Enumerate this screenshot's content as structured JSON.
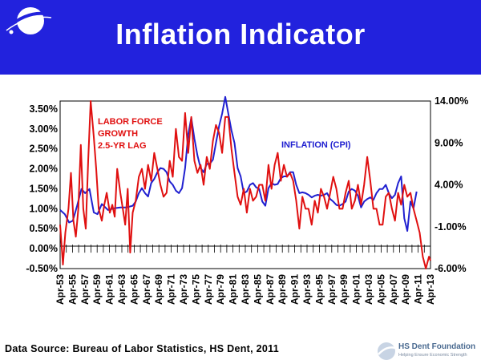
{
  "header": {
    "title": "Inflation Indicator"
  },
  "footer": {
    "source": "Data Source: Bureau of Labor Statistics, HS Dent, 2011"
  },
  "brand": {
    "name": "HS Dent Foundation",
    "tagline": "Helping Ensure Economic Strength"
  },
  "colors": {
    "header_bg": "#2222dd",
    "labor_series": "#e01010",
    "cpi_series": "#2020d0"
  },
  "chart_data": {
    "type": "line",
    "x_range": [
      1953.25,
      2013.25
    ],
    "x_tick_labels": [
      "Apr-53",
      "Apr-55",
      "Apr-57",
      "Apr-59",
      "Apr-61",
      "Apr-63",
      "Apr-65",
      "Apr-67",
      "Apr-69",
      "Apr-71",
      "Apr-73",
      "Apr-75",
      "Apr-77",
      "Apr-79",
      "Apr-81",
      "Apr-83",
      "Apr-85",
      "Apr-87",
      "Apr-89",
      "Apr-91",
      "Apr-93",
      "Apr-95",
      "Apr-97",
      "Apr-99",
      "Apr-01",
      "Apr-03",
      "Apr-05",
      "Apr-07",
      "Apr-09",
      "Apr-11",
      "Apr-13"
    ],
    "y_left": {
      "min": -0.5,
      "max": 3.7,
      "ticks": [
        "3.50%",
        "3.00%",
        "2.50%",
        "2.00%",
        "1.50%",
        "1.00%",
        "0.50%",
        "0.00%",
        "-0.50%"
      ],
      "tick_values": [
        3.5,
        3.0,
        2.5,
        2.0,
        1.5,
        1.0,
        0.5,
        0.0,
        -0.5
      ]
    },
    "y_right": {
      "min": -6.0,
      "max": 14.0,
      "ticks": [
        "14.00%",
        "9.00%",
        "4.00%",
        "-1.00%",
        "-6.00%"
      ],
      "tick_values": [
        14,
        9,
        4,
        -1,
        -6
      ]
    },
    "series": [
      {
        "name": "LABOR FORCE GROWTH 2.5-YR LAG",
        "axis": "left",
        "color": "#e01010",
        "x": [
          1953.25,
          1953.7,
          1954.1,
          1954.6,
          1955.0,
          1955.4,
          1955.8,
          1956.2,
          1956.6,
          1957.0,
          1957.4,
          1957.8,
          1958.2,
          1958.7,
          1959.1,
          1959.5,
          1960.0,
          1960.4,
          1960.8,
          1961.3,
          1961.7,
          1962.1,
          1962.5,
          1963.0,
          1963.4,
          1963.8,
          1964.2,
          1964.6,
          1965.0,
          1965.5,
          1966.0,
          1966.5,
          1967.0,
          1967.5,
          1968.0,
          1968.5,
          1969.0,
          1969.5,
          1970.0,
          1970.5,
          1971.0,
          1971.5,
          1972.0,
          1972.5,
          1973.0,
          1973.5,
          1974.0,
          1974.5,
          1975.0,
          1975.5,
          1976.0,
          1976.5,
          1977.0,
          1977.5,
          1978.0,
          1978.5,
          1979.0,
          1979.5,
          1980.0,
          1980.5,
          1981.0,
          1981.5,
          1982.0,
          1982.5,
          1983.0,
          1983.5,
          1984.0,
          1984.5,
          1985.0,
          1985.5,
          1986.0,
          1986.5,
          1987.0,
          1987.5,
          1988.0,
          1988.5,
          1989.0,
          1989.5,
          1990.0,
          1990.5,
          1991.0,
          1991.5,
          1992.0,
          1992.5,
          1993.0,
          1993.5,
          1994.0,
          1994.5,
          1995.0,
          1995.5,
          1996.0,
          1996.5,
          1997.0,
          1997.5,
          1998.0,
          1998.5,
          1999.0,
          1999.5,
          2000.0,
          2000.5,
          2001.0,
          2001.5,
          2002.0,
          2002.5,
          2003.0,
          2003.5,
          2004.0,
          2004.5,
          2005.0,
          2005.5,
          2006.0,
          2006.5,
          2007.0,
          2007.5,
          2008.0,
          2008.5,
          2009.0,
          2009.5,
          2010.0,
          2010.5,
          2011.0,
          2011.5,
          2012.0,
          2012.5,
          2013.0,
          2013.25
        ],
        "values": [
          0.6,
          -0.4,
          0.4,
          1.0,
          1.9,
          0.7,
          0.3,
          1.0,
          2.6,
          1.0,
          0.5,
          2.2,
          3.7,
          2.8,
          2.0,
          1.0,
          0.7,
          1.1,
          1.4,
          0.9,
          1.1,
          0.8,
          2.0,
          1.4,
          1.0,
          0.6,
          1.5,
          -0.1,
          0.9,
          1.2,
          1.8,
          2.0,
          1.5,
          2.1,
          1.7,
          2.4,
          2.0,
          1.6,
          1.3,
          1.4,
          2.2,
          1.8,
          3.0,
          2.3,
          2.2,
          3.4,
          2.4,
          3.3,
          2.2,
          1.9,
          2.1,
          1.6,
          2.3,
          2.0,
          2.7,
          3.1,
          2.9,
          2.4,
          3.3,
          3.3,
          2.5,
          1.9,
          1.3,
          1.1,
          1.5,
          0.9,
          1.5,
          1.2,
          1.3,
          1.6,
          1.6,
          1.2,
          2.1,
          1.5,
          2.1,
          2.4,
          1.7,
          2.1,
          1.8,
          1.9,
          1.7,
          1.2,
          0.5,
          1.3,
          1.0,
          1.0,
          0.6,
          1.2,
          0.9,
          1.5,
          1.3,
          1.0,
          1.4,
          1.8,
          1.5,
          1.0,
          1.0,
          1.4,
          1.7,
          1.0,
          1.2,
          1.6,
          1.1,
          1.6,
          2.3,
          1.7,
          1.0,
          1.0,
          0.6,
          0.6,
          1.3,
          1.4,
          1.0,
          0.7,
          1.4,
          1.1,
          1.6,
          1.3,
          1.4,
          1.0,
          0.7,
          0.4,
          -0.2,
          -0.5,
          -0.2,
          -0.3
        ]
      },
      {
        "name": "INFLATION (CPI)",
        "axis": "right",
        "color": "#2020d0",
        "x": [
          1953.25,
          1954.0,
          1954.7,
          1955.3,
          1956.0,
          1956.7,
          1957.3,
          1958.0,
          1958.7,
          1959.3,
          1960.0,
          1961.0,
          1962.0,
          1963.0,
          1964.0,
          1965.0,
          1965.5,
          1966.0,
          1966.5,
          1967.0,
          1967.5,
          1968.0,
          1968.5,
          1969.0,
          1969.5,
          1970.0,
          1970.5,
          1971.0,
          1971.5,
          1972.0,
          1972.5,
          1973.0,
          1973.5,
          1974.0,
          1974.5,
          1975.0,
          1975.5,
          1976.0,
          1976.5,
          1977.0,
          1977.5,
          1978.0,
          1978.5,
          1979.0,
          1979.5,
          1980.0,
          1980.5,
          1981.0,
          1981.5,
          1982.0,
          1982.5,
          1983.0,
          1983.5,
          1984.0,
          1984.5,
          1985.0,
          1985.5,
          1986.0,
          1986.5,
          1987.0,
          1987.5,
          1988.0,
          1988.5,
          1989.0,
          1989.5,
          1990.0,
          1990.5,
          1991.0,
          1991.5,
          1992.0,
          1992.5,
          1993.0,
          1993.5,
          1994.0,
          1994.5,
          1995.0,
          1995.5,
          1996.0,
          1996.5,
          1997.0,
          1997.5,
          1998.0,
          1998.5,
          1999.0,
          1999.5,
          2000.0,
          2000.5,
          2001.0,
          2001.5,
          2002.0,
          2002.5,
          2003.0,
          2003.5,
          2004.0,
          2004.5,
          2005.0,
          2005.5,
          2006.0,
          2006.5,
          2007.0,
          2007.5,
          2008.0,
          2008.5,
          2009.0,
          2009.5,
          2010.0,
          2010.5,
          2011.0
        ],
        "values": [
          1.0,
          0.5,
          -0.5,
          -0.3,
          1.5,
          3.5,
          3.0,
          3.5,
          0.7,
          0.5,
          1.7,
          1.0,
          1.2,
          1.3,
          1.3,
          1.5,
          2.0,
          3.0,
          3.6,
          3.0,
          2.6,
          4.2,
          4.7,
          5.5,
          6.0,
          5.9,
          5.5,
          4.4,
          4.0,
          3.3,
          3.0,
          3.6,
          6.0,
          10.0,
          12.0,
          9.5,
          7.5,
          6.0,
          5.5,
          6.5,
          6.5,
          7.0,
          9.0,
          11.0,
          12.5,
          14.5,
          12.5,
          10.5,
          9.0,
          6.0,
          5.0,
          3.0,
          3.2,
          4.0,
          4.2,
          3.7,
          3.5,
          2.0,
          1.5,
          3.6,
          4.2,
          4.0,
          4.1,
          4.8,
          5.0,
          5.0,
          5.5,
          5.5,
          4.0,
          3.0,
          3.1,
          3.0,
          2.8,
          2.5,
          2.7,
          2.8,
          2.7,
          2.8,
          3.0,
          2.3,
          2.0,
          1.6,
          1.5,
          1.7,
          2.0,
          3.2,
          3.5,
          3.3,
          2.7,
          1.3,
          2.0,
          2.3,
          2.5,
          2.2,
          3.0,
          3.5,
          3.5,
          4.0,
          3.0,
          2.4,
          2.8,
          4.2,
          5.0,
          0.0,
          -1.5,
          2.0,
          1.2,
          3.2
        ]
      }
    ],
    "annotations": [
      {
        "lines": [
          "LABOR FORCE",
          "GROWTH",
          "2.5-YR LAG"
        ],
        "color": "#e01010"
      },
      {
        "lines": [
          "INFLATION (CPI)"
        ],
        "color": "#2020d0"
      }
    ]
  }
}
